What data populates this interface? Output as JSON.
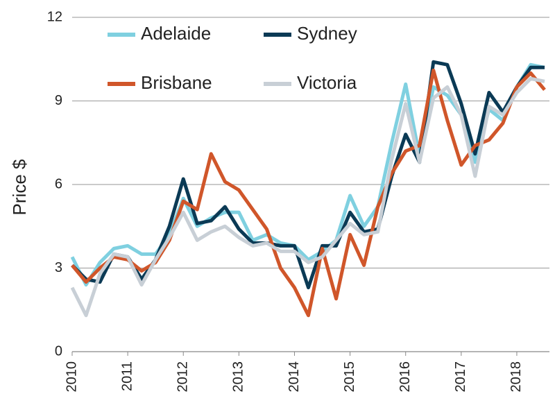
{
  "chart_data": {
    "type": "line",
    "y_label": "Price $",
    "x": [
      2010,
      2010.25,
      2010.5,
      2010.75,
      2011,
      2011.25,
      2011.5,
      2011.75,
      2012,
      2012.25,
      2012.5,
      2012.75,
      2013,
      2013.25,
      2013.5,
      2013.75,
      2014,
      2014.25,
      2014.5,
      2014.75,
      2015,
      2015.25,
      2015.5,
      2015.75,
      2016,
      2016.25,
      2016.5,
      2016.75,
      2017,
      2017.25,
      2017.5,
      2017.75,
      2018,
      2018.25,
      2018.5
    ],
    "series": [
      {
        "name": "Adelaide",
        "color": "#7fd0e0",
        "values": [
          3.4,
          2.4,
          3.2,
          3.7,
          3.8,
          3.5,
          3.5,
          4.2,
          5.5,
          4.5,
          4.8,
          5.0,
          5.0,
          4.0,
          4.2,
          3.9,
          3.8,
          3.3,
          3.6,
          4.0,
          5.6,
          4.5,
          5.2,
          7.5,
          9.6,
          7.0,
          9.5,
          9.2,
          8.5,
          6.8,
          8.7,
          8.3,
          9.5,
          10.3,
          10.2
        ]
      },
      {
        "name": "Sydney",
        "color": "#0b3a55",
        "values": [
          3.1,
          2.6,
          2.5,
          3.5,
          3.4,
          2.6,
          3.3,
          4.5,
          6.2,
          4.6,
          4.7,
          5.2,
          4.4,
          3.9,
          3.9,
          3.8,
          3.8,
          2.3,
          3.8,
          3.8,
          5.0,
          4.3,
          4.4,
          6.3,
          7.8,
          6.8,
          10.4,
          10.3,
          8.9,
          7.1,
          9.3,
          8.6,
          9.5,
          10.2,
          10.2
        ]
      },
      {
        "name": "Brisbane",
        "color": "#d0562a",
        "values": [
          3.1,
          2.5,
          3.0,
          3.4,
          3.3,
          2.9,
          3.2,
          4.0,
          5.4,
          5.1,
          7.1,
          6.1,
          5.8,
          5.1,
          4.4,
          3.0,
          2.3,
          1.3,
          3.7,
          1.9,
          4.2,
          3.1,
          5.2,
          6.4,
          7.2,
          7.4,
          10.1,
          8.3,
          6.7,
          7.4,
          7.6,
          8.2,
          9.5,
          10.0,
          9.4
        ]
      },
      {
        "name": "Victoria",
        "color": "#c8cfd6",
        "values": [
          2.3,
          1.3,
          2.8,
          3.5,
          3.4,
          2.4,
          3.3,
          4.1,
          5.0,
          4.0,
          4.3,
          4.5,
          4.1,
          3.8,
          3.9,
          3.6,
          3.6,
          3.2,
          3.4,
          4.0,
          4.6,
          4.2,
          4.3,
          6.9,
          8.9,
          6.8,
          9.1,
          9.5,
          8.5,
          6.3,
          8.8,
          8.5,
          9.3,
          9.8,
          9.7
        ]
      }
    ],
    "xlim": [
      2010,
      2018.5
    ],
    "xticks": [
      2010,
      2011,
      2012,
      2013,
      2014,
      2015,
      2016,
      2017,
      2018
    ],
    "ylim": [
      0,
      12
    ],
    "yticks": [
      0,
      3,
      6,
      9,
      12
    ],
    "grid": true,
    "legend": "top-left"
  }
}
